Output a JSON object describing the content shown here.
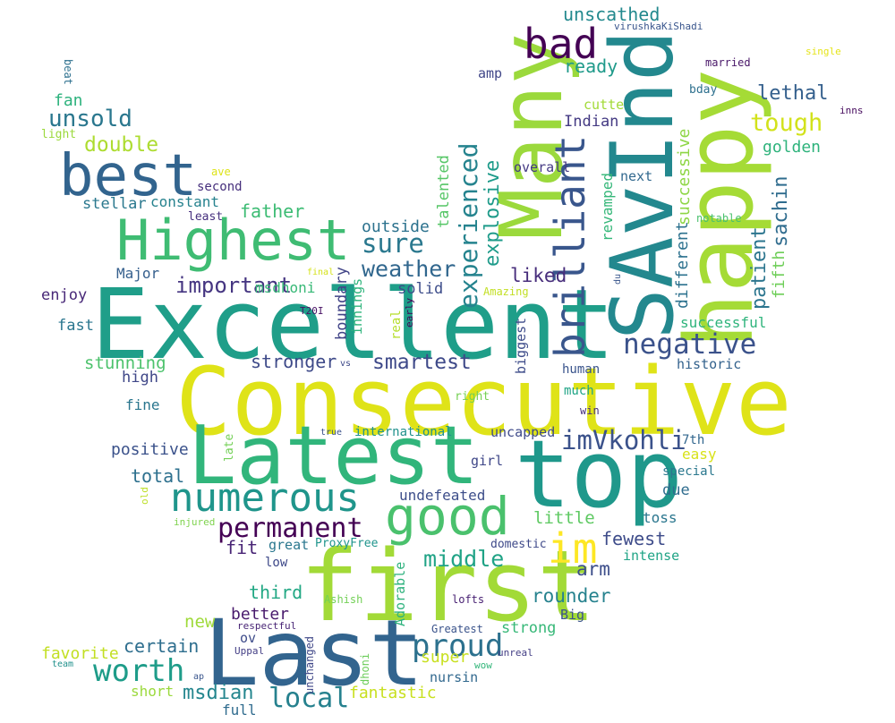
{
  "palette": {
    "dark_purple": "#440154",
    "indigo": "#3b528b",
    "slate_blue": "#31688e",
    "teal": "#21918c",
    "green_teal": "#1fa187",
    "green": "#35b779",
    "light_green": "#6ece58",
    "lime": "#a0da39",
    "yellow_green": "#c6de21",
    "yellow": "#fde725"
  },
  "words": [
    {
      "text": "Consecutive",
      "color": "#dfe318"
    },
    {
      "text": "Excellent",
      "color": "#1f9e89"
    },
    {
      "text": "Latest",
      "color": "#31b57b"
    },
    {
      "text": "first",
      "color": "#a2da37"
    },
    {
      "text": "Last",
      "color": "#32648e"
    },
    {
      "text": "top",
      "color": "#1f988b"
    },
    {
      "text": "Many",
      "color": "#9bd93c"
    },
    {
      "text": "SAvInd",
      "color": "#23888e"
    },
    {
      "text": "happy",
      "color": "#a5db36"
    },
    {
      "text": "Highest",
      "color": "#3fbc73"
    },
    {
      "text": "best",
      "color": "#32648e"
    },
    {
      "text": "good",
      "color": "#4ac16d"
    },
    {
      "text": "bad",
      "color": "#440154"
    },
    {
      "text": "brilliant",
      "color": "#39568c"
    },
    {
      "text": "numerous",
      "color": "#1f958b"
    },
    {
      "text": "experienced",
      "color": "#25838e"
    },
    {
      "text": "negative",
      "color": "#3b528b"
    },
    {
      "text": "im",
      "color": "#fde725"
    },
    {
      "text": "imVkohli",
      "color": "#3b528b"
    },
    {
      "text": "permanent",
      "color": "#440154"
    },
    {
      "text": "proud",
      "color": "#2c718e"
    },
    {
      "text": "worth",
      "color": "#1e9c89"
    },
    {
      "text": "local",
      "color": "#26818e"
    },
    {
      "text": "explosive",
      "color": "#1e9b8a"
    },
    {
      "text": "tough",
      "color": "#d2e21b"
    },
    {
      "text": "sure",
      "color": "#2a788e"
    },
    {
      "text": "weather",
      "color": "#31678e"
    },
    {
      "text": "important",
      "color": "#453581"
    },
    {
      "text": "smartest",
      "color": "#3e4989"
    },
    {
      "text": "unsold",
      "color": "#2a778e"
    },
    {
      "text": "double",
      "color": "#addc30"
    },
    {
      "text": "middle",
      "color": "#20a386"
    },
    {
      "text": "unscathed",
      "color": "#23898e"
    },
    {
      "text": "successive",
      "color": "#8ed645"
    },
    {
      "text": "patient",
      "color": "#2b758e"
    },
    {
      "text": "sachin",
      "color": "#2f6c8e"
    },
    {
      "text": "lethal",
      "color": "#35608d"
    },
    {
      "text": "ready",
      "color": "#1f9a8a"
    },
    {
      "text": "fifth",
      "color": "#6ece58"
    },
    {
      "text": "different",
      "color": "#2c718e"
    },
    {
      "text": "revamped",
      "color": "#35b779"
    },
    {
      "text": "golden",
      "color": "#2eb37c"
    },
    {
      "text": "talented",
      "color": "#56c667"
    },
    {
      "text": "boundary",
      "color": "#414487"
    },
    {
      "text": "innings",
      "color": "#2fb47c"
    },
    {
      "text": "real",
      "color": "#b5de2b"
    },
    {
      "text": "biggest",
      "color": "#3e4c8a"
    },
    {
      "text": "liked",
      "color": "#472d7b"
    },
    {
      "text": "solid",
      "color": "#3d4d8a"
    },
    {
      "text": "outside",
      "color": "#2c728e"
    },
    {
      "text": "stronger",
      "color": "#3e4a89"
    },
    {
      "text": "stunning",
      "color": "#4cc26c"
    },
    {
      "text": "fast",
      "color": "#2a768e"
    },
    {
      "text": "enjoy",
      "color": "#482878"
    },
    {
      "text": "Major",
      "color": "#355f8d"
    },
    {
      "text": "msdhoni",
      "color": "#38b977"
    },
    {
      "text": "father",
      "color": "#3dbc74"
    },
    {
      "text": "constant",
      "color": "#26828e"
    },
    {
      "text": "stellar",
      "color": "#2a788e"
    },
    {
      "text": "second",
      "color": "#462f7c"
    },
    {
      "text": "least",
      "color": "#46307e"
    },
    {
      "text": "ave",
      "color": "#dde318"
    },
    {
      "text": "fan",
      "color": "#2db27d"
    },
    {
      "text": "light",
      "color": "#9bd93c"
    },
    {
      "text": "beat",
      "color": "#2d708e"
    },
    {
      "text": "amp",
      "color": "#404688"
    },
    {
      "text": "cutte",
      "color": "#a2da37"
    },
    {
      "text": "Indian",
      "color": "#443a83"
    },
    {
      "text": "overall",
      "color": "#443983"
    },
    {
      "text": "next",
      "color": "#31688e"
    },
    {
      "text": "bday",
      "color": "#2d708e"
    },
    {
      "text": "married",
      "color": "#481668"
    },
    {
      "text": "virushkaKiShadi",
      "color": "#39558c"
    },
    {
      "text": "single",
      "color": "#e5e419"
    },
    {
      "text": "inns",
      "color": "#460b5e"
    },
    {
      "text": "notable",
      "color": "#4ac16d"
    },
    {
      "text": "successful",
      "color": "#2fb47c"
    },
    {
      "text": "historic",
      "color": "#33628d"
    },
    {
      "text": "human",
      "color": "#3a548c"
    },
    {
      "text": "much",
      "color": "#20a486"
    },
    {
      "text": "win",
      "color": "#462f7e"
    },
    {
      "text": "right",
      "color": "#75d054"
    },
    {
      "text": "vs",
      "color": "#3e4989"
    },
    {
      "text": "T20I",
      "color": "#471164"
    },
    {
      "text": "early",
      "color": "#440154"
    },
    {
      "text": "du",
      "color": "#39568c"
    },
    {
      "text": "final",
      "color": "#d5e21a"
    },
    {
      "text": "Amazing",
      "color": "#c2df23"
    },
    {
      "text": "high",
      "color": "#3f4788"
    },
    {
      "text": "fine",
      "color": "#2a768e"
    },
    {
      "text": "positive",
      "color": "#3b528b"
    },
    {
      "text": "total",
      "color": "#2d708e"
    },
    {
      "text": "late",
      "color": "#73d056"
    },
    {
      "text": "true",
      "color": "#3b528b"
    },
    {
      "text": "international",
      "color": "#21918c"
    },
    {
      "text": "uncapped",
      "color": "#3e4a89"
    },
    {
      "text": "girl",
      "color": "#3f4788"
    },
    {
      "text": "undefeated",
      "color": "#3d4e8a"
    },
    {
      "text": "easy",
      "color": "#d8e219"
    },
    {
      "text": "7th",
      "color": "#31668e"
    },
    {
      "text": "special",
      "color": "#2a788e"
    },
    {
      "text": "due",
      "color": "#2f6c8e"
    },
    {
      "text": "toss",
      "color": "#2a768e"
    },
    {
      "text": "little",
      "color": "#5ec962"
    },
    {
      "text": "old",
      "color": "#bddf26"
    },
    {
      "text": "injured",
      "color": "#7fd34e"
    },
    {
      "text": "fit",
      "color": "#482475"
    },
    {
      "text": "great",
      "color": "#2a778e"
    },
    {
      "text": "ProxyFree",
      "color": "#1f948c"
    },
    {
      "text": "fewest",
      "color": "#3e4c8a"
    },
    {
      "text": "domestic",
      "color": "#3e4989"
    },
    {
      "text": "arm",
      "color": "#3d4e8a"
    },
    {
      "text": "low",
      "color": "#3e4989"
    },
    {
      "text": "intense",
      "color": "#20a486"
    },
    {
      "text": "third",
      "color": "#22a884"
    },
    {
      "text": "rounder",
      "color": "#26828e"
    },
    {
      "text": "Adorable",
      "color": "#2db27d"
    },
    {
      "text": "lofts",
      "color": "#482173"
    },
    {
      "text": "Ashish",
      "color": "#73d056"
    },
    {
      "text": "new",
      "color": "#9fda3a"
    },
    {
      "text": "better",
      "color": "#481a6c"
    },
    {
      "text": "ov",
      "color": "#3e4c8a"
    },
    {
      "text": "respectful",
      "color": "#482475"
    },
    {
      "text": "Uppal",
      "color": "#433e85"
    },
    {
      "text": "certain",
      "color": "#2e6e8e"
    },
    {
      "text": "Big",
      "color": "#3b528b"
    },
    {
      "text": "strong",
      "color": "#37b878"
    },
    {
      "text": "Greatest",
      "color": "#3a538b"
    },
    {
      "text": "super",
      "color": "#c8e020"
    },
    {
      "text": "unreal",
      "color": "#433e85"
    },
    {
      "text": "wow",
      "color": "#33b67a"
    },
    {
      "text": "unchanged",
      "color": "#3f4788"
    },
    {
      "text": "dhoni",
      "color": "#6ccd5a"
    },
    {
      "text": "nursin",
      "color": "#31688e"
    },
    {
      "text": "favorite",
      "color": "#c2df23"
    },
    {
      "text": "team",
      "color": "#21918c"
    },
    {
      "text": "ap",
      "color": "#39558c"
    },
    {
      "text": "short",
      "color": "#9bd93c"
    },
    {
      "text": "msdian",
      "color": "#24868e"
    },
    {
      "text": "full",
      "color": "#2f6b8e"
    },
    {
      "text": "fantastic",
      "color": "#c8e020"
    }
  ]
}
